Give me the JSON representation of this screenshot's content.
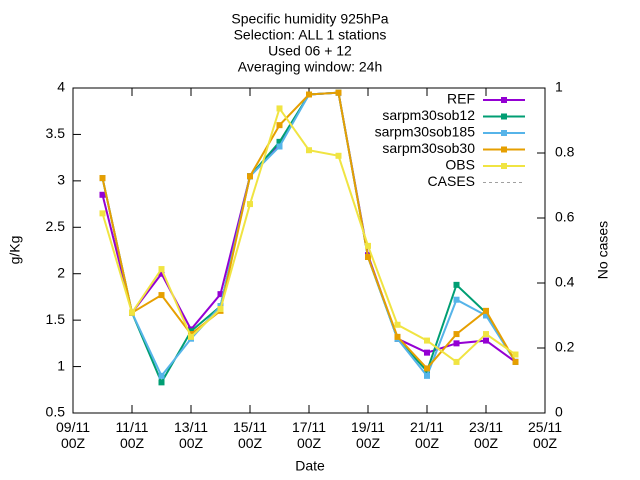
{
  "chart_data": {
    "type": "line",
    "title": [
      "Specific humidity 925hPa",
      "Selection: ALL      1 stations",
      "Used 06 + 12",
      "Averaging window: 24h"
    ],
    "xlabel": "Date",
    "ylabel": "g/Kg",
    "y2label": "No cases",
    "x": [
      "10/11\n00Z",
      "11/11\n00Z",
      "12/11\n00Z",
      "13/11\n00Z",
      "14/11\n00Z",
      "15/11\n00Z",
      "16/11\n00Z",
      "17/11\n00Z",
      "18/11\n00Z",
      "19/11\n00Z",
      "20/11\n00Z",
      "21/11\n00Z",
      "22/11\n00Z",
      "23/11\n00Z",
      "24/11\n00Z"
    ],
    "xlim": [
      "09/11\n00Z",
      "25/11\n00Z"
    ],
    "xticks": [
      "09/11\n00Z",
      "11/11\n00Z",
      "13/11\n00Z",
      "15/11\n00Z",
      "17/11\n00Z",
      "19/11\n00Z",
      "21/11\n00Z",
      "23/11\n00Z",
      "25/11\n00Z"
    ],
    "ylim": [
      0.5,
      4
    ],
    "yticks": [
      0.5,
      1,
      1.5,
      2,
      2.5,
      3,
      3.5,
      4
    ],
    "y2lim": [
      0,
      1
    ],
    "y2ticks": [
      0,
      0.2,
      0.4,
      0.6,
      0.8,
      1
    ],
    "legend": "top-right",
    "series": [
      {
        "name": "REF",
        "color": "#9400d3",
        "values": [
          2.85,
          1.58,
          2.0,
          1.4,
          1.78,
          3.05,
          3.4,
          3.93,
          3.95,
          2.2,
          1.3,
          1.15,
          1.25,
          1.28,
          1.05
        ]
      },
      {
        "name": "sarpm30sob12",
        "color": "#009e73",
        "values": [
          3.03,
          1.58,
          0.83,
          1.38,
          1.65,
          3.05,
          3.42,
          3.93,
          3.95,
          2.18,
          1.3,
          0.95,
          1.88,
          1.58,
          1.05
        ]
      },
      {
        "name": "sarpm30sob185",
        "color": "#56b4e9",
        "values": [
          3.03,
          1.58,
          0.9,
          1.3,
          1.65,
          3.05,
          3.37,
          3.93,
          3.95,
          2.18,
          1.3,
          0.9,
          1.72,
          1.55,
          1.05
        ]
      },
      {
        "name": "sarpm30sob30",
        "color": "#e69f00",
        "values": [
          3.03,
          1.58,
          1.77,
          1.35,
          1.6,
          3.05,
          3.6,
          3.93,
          3.95,
          2.18,
          1.32,
          0.98,
          1.35,
          1.6,
          1.05
        ]
      },
      {
        "name": "OBS",
        "color": "#f0e442",
        "values": [
          2.65,
          1.58,
          2.05,
          1.32,
          1.62,
          2.75,
          3.78,
          3.33,
          3.27,
          2.3,
          1.45,
          1.28,
          1.05,
          1.35,
          1.13
        ]
      },
      {
        "name": "CASES",
        "color": "#a0a0a0",
        "axis": "y2",
        "values": [
          null,
          null,
          null,
          null,
          null,
          null,
          null,
          null,
          null,
          null,
          null,
          null,
          null,
          null,
          null
        ]
      }
    ]
  }
}
